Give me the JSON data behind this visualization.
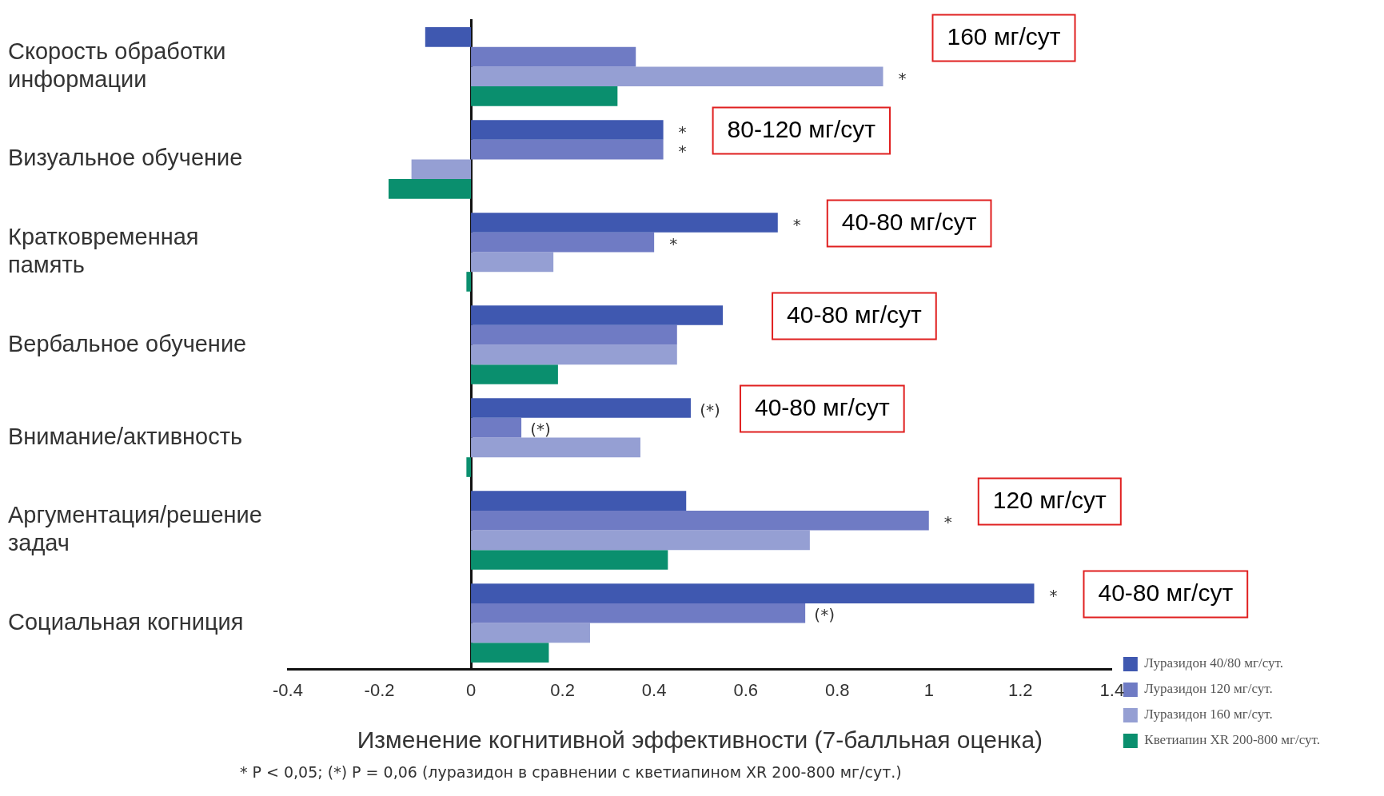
{
  "chart_data": {
    "type": "bar",
    "orientation": "horizontal",
    "xlabel": "Изменение когнитивной эффективности (7-балльная оценка)",
    "categories": [
      "Скорость обработки информации",
      "Визуальное обучение",
      "Кратковременная память",
      "Вербальное обучение",
      "Внимание/активность",
      "Аргументация/решение задач",
      "Социальная когниция"
    ],
    "series": [
      {
        "name": "Луразидон 40/80 мг/сут.",
        "color": "#3f58b0",
        "values": [
          -0.1,
          0.42,
          0.67,
          0.55,
          0.48,
          0.47,
          1.23
        ],
        "value_labels": [
          null,
          "*",
          "*",
          null,
          "(*)",
          null,
          "*"
        ]
      },
      {
        "name": "Луразидон 120 мг/сут.",
        "color": "#6f7bc4",
        "values": [
          0.36,
          0.42,
          0.4,
          0.45,
          0.11,
          1.0,
          0.73
        ],
        "value_labels": [
          null,
          "*",
          "*",
          null,
          "(*)",
          "*",
          "(*)"
        ]
      },
      {
        "name": "Луразидон 160 мг/сут.",
        "color": "#959fd3",
        "values": [
          0.9,
          -0.13,
          0.18,
          0.45,
          0.37,
          0.74,
          0.26
        ],
        "value_labels": [
          "*",
          null,
          null,
          null,
          null,
          null,
          null
        ]
      },
      {
        "name": "Кветиапин XR 200-800 мг/сут.",
        "color": "#0a8f6e",
        "values": [
          0.32,
          -0.18,
          -0.01,
          0.19,
          -0.01,
          0.43,
          0.17
        ]
      }
    ],
    "xlim": [
      -0.4,
      1.4
    ],
    "xticks": [
      -0.4,
      -0.2,
      0,
      0.2,
      0.4,
      0.6,
      0.8,
      1,
      1.2,
      1.4
    ],
    "legend": "bottom right",
    "annotations": [
      "160 мг/сут",
      "80-120 мг/сут",
      "40-80 мг/сут",
      "40-80 мг/сут",
      "40-80 мг/сут",
      "120 мг/сут",
      "40-80 мг/сут",
      "* P < 0,05; (*) P = 0,06 (луразидон в сравнении с кветиапином XR 200-800 мг/сут.)"
    ]
  }
}
